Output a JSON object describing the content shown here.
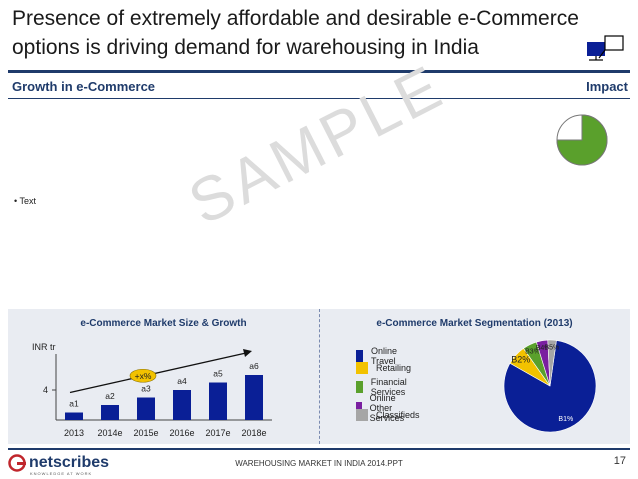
{
  "title": {
    "line1": "Presence of extremely affordable and desirable e-Commerce",
    "line2": "options is driving demand for warehousing in India"
  },
  "sections": {
    "left": "Growth in e-Commerce",
    "right": "Impact"
  },
  "body": {
    "bullet": "• Text"
  },
  "watermark": "SAMPLE",
  "impact_gauge": {
    "fill_fraction": 0.75,
    "fill_color": "#5aa02c"
  },
  "panels": {
    "left_title": "e-Commerce Market Size & Growth",
    "right_title": "e-Commerce Market Segmentation (2013)"
  },
  "legend": [
    {
      "label": "Online Travel",
      "color": "#0a1f96"
    },
    {
      "label": "Retailing",
      "color": "#f2c200"
    },
    {
      "label": "Financial Services",
      "color": "#5aa02c"
    },
    {
      "label": "Online Other Services",
      "color": "#7a1fa0"
    },
    {
      "label": "Classifieds",
      "color": "#a6a6a6"
    }
  ],
  "chart_data": [
    {
      "type": "bar",
      "categories": [
        "2013",
        "2014e",
        "2015e",
        "2016e",
        "2017e",
        "2018e"
      ],
      "values": [
        1.0,
        2.0,
        3.0,
        4.0,
        5.0,
        6.0
      ],
      "data_labels": [
        "a1",
        "a2",
        "a3",
        "a4",
        "a5",
        "a6"
      ],
      "ylabel": "INR tr",
      "y_tick": "4",
      "annotation": "+x%",
      "bar_color": "#0a1f96",
      "ylim": [
        0,
        8
      ]
    },
    {
      "type": "pie",
      "slices": [
        {
          "label": "B1%",
          "value": 81
        },
        {
          "label": "B2%",
          "value": 7
        },
        {
          "label": "B3%",
          "value": 5
        },
        {
          "label": "B4%",
          "value": 4
        },
        {
          "label": "B5%",
          "value": 3
        }
      ],
      "colors": [
        "#0a1f96",
        "#f2c200",
        "#5aa02c",
        "#7a1fa0",
        "#a6a6a6"
      ]
    }
  ],
  "footer": {
    "logo": "netscribes",
    "tagline": "KNOWLEDGE  AT  WORK",
    "doc_name": "WAREHOUSING MARKET IN INDIA 2014.PPT",
    "page_number": "17"
  }
}
